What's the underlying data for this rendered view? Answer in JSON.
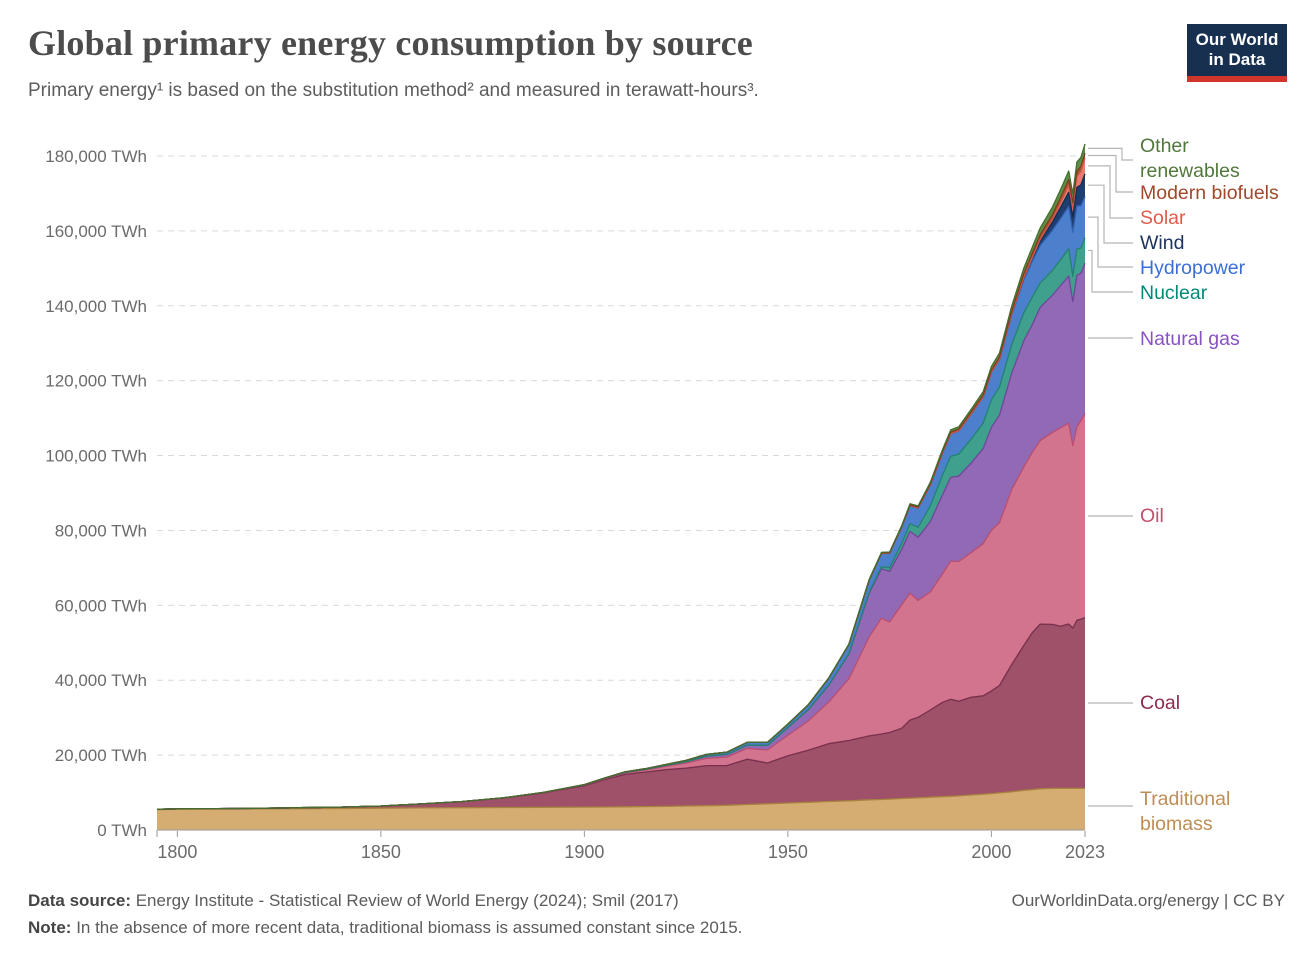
{
  "header": {
    "title": "Global primary energy consumption by source",
    "subtitle": "Primary energy¹ is based on the substitution method² and measured in terawatt-hours³.",
    "logo_line1": "Our World",
    "logo_line2": "in Data",
    "logo_bg": "#17304f",
    "logo_accent": "#d0342b"
  },
  "footer": {
    "data_source_label": "Data source:",
    "data_source_text": "Energy Institute - Statistical Review of World Energy (2024); Smil (2017)",
    "attribution": "OurWorldinData.org/energy | CC BY",
    "note_label": "Note:",
    "note_text": "In the absence of more recent data, traditional biomass is assumed constant since 2015."
  },
  "chart_data": {
    "type": "area",
    "stacked": true,
    "title": "Global primary energy consumption by source",
    "unit": "TWh",
    "xlabel": "",
    "ylabel": "",
    "ylim": [
      0,
      180000
    ],
    "x_domain": [
      1795,
      2023
    ],
    "grid": true,
    "legend_position": "right",
    "yticks": [
      {
        "value": 0,
        "label": "0 TWh"
      },
      {
        "value": 20000,
        "label": "20,000 TWh"
      },
      {
        "value": 40000,
        "label": "40,000 TWh"
      },
      {
        "value": 60000,
        "label": "60,000 TWh"
      },
      {
        "value": 80000,
        "label": "80,000 TWh"
      },
      {
        "value": 100000,
        "label": "100,000 TWh"
      },
      {
        "value": 120000,
        "label": "120,000 TWh"
      },
      {
        "value": 140000,
        "label": "140,000 TWh"
      },
      {
        "value": 160000,
        "label": "160,000 TWh"
      },
      {
        "value": 180000,
        "label": "180,000 TWh"
      }
    ],
    "xticks": [
      {
        "value": 1800,
        "label": "1800"
      },
      {
        "value": 1850,
        "label": "1850"
      },
      {
        "value": 1900,
        "label": "1900"
      },
      {
        "value": 1950,
        "label": "1950"
      },
      {
        "value": 2000,
        "label": "2000"
      },
      {
        "value": 2023,
        "label": "2023"
      }
    ],
    "years": [
      1795,
      1800,
      1810,
      1820,
      1830,
      1840,
      1850,
      1860,
      1870,
      1880,
      1890,
      1900,
      1905,
      1910,
      1915,
      1920,
      1925,
      1930,
      1935,
      1940,
      1945,
      1950,
      1955,
      1960,
      1965,
      1970,
      1973,
      1975,
      1978,
      1980,
      1982,
      1985,
      1988,
      1990,
      1992,
      1995,
      1998,
      2000,
      2002,
      2005,
      2008,
      2010,
      2012,
      2015,
      2017,
      2019,
      2020,
      2021,
      2022,
      2023
    ],
    "series": [
      {
        "name": "traditional_biomass",
        "label": "Traditional biomass",
        "fill": "#D5AC72",
        "line": "#A8823F",
        "label_color": "#BE8E54",
        "values": [
          5450,
          5556,
          5600,
          5650,
          5700,
          5750,
          5833,
          5900,
          5950,
          6000,
          6050,
          6111,
          6150,
          6200,
          6250,
          6300,
          6400,
          6500,
          6600,
          6800,
          7000,
          7222,
          7400,
          7600,
          7800,
          8056,
          8150,
          8250,
          8400,
          8500,
          8600,
          8750,
          8900,
          9000,
          9100,
          9350,
          9550,
          9722,
          9900,
          10200,
          10600,
          10800,
          11000,
          11111,
          11111,
          11111,
          11111,
          11111,
          11111,
          11111
        ]
      },
      {
        "name": "coal",
        "label": "Coal",
        "fill": "#9E5168",
        "line": "#77304D",
        "label_color": "#8D2B4E",
        "values": [
          80,
          97,
          128,
          153,
          264,
          356,
          569,
          1061,
          1642,
          2542,
          3856,
          5728,
          7300,
          8656,
          9200,
          9800,
          10100,
          10700,
          10600,
          12100,
          10900,
          12603,
          13900,
          15442,
          16100,
          17067,
          17500,
          17800,
          18800,
          20858,
          21500,
          23300,
          25200,
          25905,
          25300,
          26100,
          26300,
          27427,
          28700,
          34000,
          38700,
          41855,
          44000,
          43786,
          43300,
          43900,
          42800,
          44900,
          45200,
          45565
        ]
      },
      {
        "name": "oil",
        "label": "Oil",
        "fill": "#D3748E",
        "line": "#BA4E71",
        "label_color": "#C2506B",
        "values": [
          0,
          0,
          0,
          0,
          0,
          0,
          0,
          6,
          11,
          38,
          92,
          181,
          260,
          397,
          550,
          889,
          1400,
          1935,
          2300,
          2900,
          3500,
          5444,
          7800,
          11096,
          16500,
          26500,
          30900,
          29500,
          33000,
          33900,
          31200,
          31500,
          34300,
          36870,
          37300,
          38600,
          40600,
          42881,
          43500,
          46700,
          47700,
          48100,
          49000,
          51300,
          53000,
          53620,
          48712,
          51700,
          52970,
          54564
        ]
      },
      {
        "name": "natural_gas",
        "label": "Natural gas",
        "fill": "#9269B4",
        "line": "#70459B",
        "label_color": "#8852C5",
        "values": [
          0,
          0,
          0,
          0,
          0,
          0,
          0,
          0,
          0,
          0,
          33,
          64,
          90,
          140,
          200,
          250,
          340,
          570,
          680,
          870,
          1200,
          2092,
          3000,
          4472,
          6600,
          11658,
          13200,
          13500,
          14800,
          16500,
          16900,
          18800,
          21100,
          22380,
          22800,
          23900,
          25400,
          27528,
          28700,
          31100,
          33700,
          34100,
          35600,
          36600,
          38000,
          39292,
          38500,
          40400,
          39413,
          40102
        ]
      },
      {
        "name": "nuclear",
        "label": "Nuclear",
        "fill": "#3FA08E",
        "line": "#21836F",
        "label_color": "#008878",
        "values": [
          0,
          0,
          0,
          0,
          0,
          0,
          0,
          0,
          0,
          0,
          0,
          0,
          0,
          0,
          0,
          0,
          0,
          0,
          0,
          0,
          0,
          0,
          0,
          26,
          72,
          224,
          550,
          1000,
          1600,
          2020,
          2600,
          4200,
          5300,
          5676,
          5900,
          6400,
          6800,
          7323,
          7500,
          7600,
          7500,
          7374,
          6500,
          6656,
          6900,
          7300,
          6789,
          7100,
          6700,
          6824
        ]
      },
      {
        "name": "hydropower",
        "label": "Hydropower",
        "fill": "#4D80CC",
        "line": "#3161B0",
        "label_color": "#3B6FD6",
        "values": [
          0,
          0,
          0,
          0,
          0,
          0,
          0,
          0,
          0,
          2,
          15,
          48,
          75,
          120,
          170,
          244,
          350,
          480,
          600,
          740,
          830,
          926,
          1300,
          1870,
          2500,
          3290,
          3600,
          3900,
          4400,
          4871,
          5200,
          5600,
          5900,
          6023,
          6200,
          6700,
          7000,
          7321,
          7300,
          8000,
          8800,
          9518,
          10000,
          10700,
          11000,
          11300,
          11700,
          11500,
          11300,
          11014
        ]
      },
      {
        "name": "wind",
        "label": "Wind",
        "fill": "#1F3E70",
        "line": "#152B52",
        "label_color": "#1D3360",
        "values": [
          0,
          0,
          0,
          0,
          0,
          0,
          0,
          0,
          0,
          0,
          0,
          0,
          0,
          0,
          0,
          0,
          0,
          0,
          0,
          0,
          0,
          0,
          0,
          0,
          0,
          0,
          0,
          0,
          0,
          0,
          0,
          0,
          4,
          10,
          13,
          22,
          44,
          83,
          140,
          280,
          590,
          916,
          1400,
          2200,
          3000,
          3800,
          4200,
          4900,
          5600,
          6040
        ]
      },
      {
        "name": "solar",
        "label": "Solar",
        "fill": "#E87D6F",
        "line": "#D3574A",
        "label_color": "#E25B4A",
        "values": [
          0,
          0,
          0,
          0,
          0,
          0,
          0,
          0,
          0,
          0,
          0,
          0,
          0,
          0,
          0,
          0,
          0,
          0,
          0,
          0,
          0,
          0,
          0,
          0,
          0,
          0,
          0,
          0,
          0,
          0,
          0,
          0,
          0,
          0,
          0,
          0,
          0,
          3,
          5,
          11,
          35,
          91,
          260,
          670,
          1200,
          1900,
          2300,
          2900,
          3600,
          4264
        ]
      },
      {
        "name": "modern_biofuels",
        "label": "Modern biofuels",
        "fill": "#A5562F",
        "line": "#7F3D1D",
        "label_color": "#A0492B",
        "values": [
          0,
          0,
          0,
          0,
          0,
          0,
          0,
          0,
          0,
          0,
          0,
          0,
          0,
          0,
          0,
          0,
          0,
          0,
          0,
          0,
          0,
          0,
          0,
          0,
          0,
          100,
          110,
          120,
          140,
          180,
          230,
          300,
          370,
          400,
          420,
          450,
          480,
          510,
          560,
          700,
          990,
          1130,
          1220,
          1300,
          1400,
          1480,
          1420,
          1450,
          1300,
          1320
        ]
      },
      {
        "name": "other_renewables",
        "label": "Other renewables",
        "fill": "#5D9047",
        "line": "#436E2F",
        "label_color": "#51783C",
        "values": [
          0,
          0,
          0,
          0,
          0,
          0,
          0,
          0,
          0,
          0,
          0,
          0,
          0,
          0,
          0,
          0,
          0,
          0,
          0,
          0,
          0,
          20,
          30,
          50,
          80,
          120,
          150,
          170,
          220,
          280,
          330,
          420,
          520,
          600,
          660,
          780,
          900,
          1000,
          1100,
          1300,
          1500,
          1650,
          1800,
          2000,
          2150,
          2300,
          2350,
          2400,
          2420,
          2428
        ]
      }
    ]
  }
}
